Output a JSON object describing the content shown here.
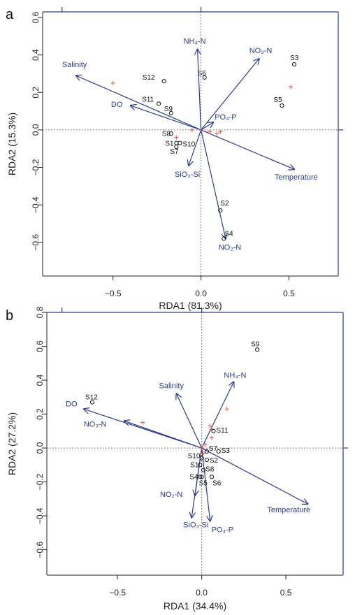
{
  "chart_data": [
    {
      "type": "scatter",
      "panel_label": "a",
      "xlabel": "RDA1 (81.3%)",
      "ylabel": "RDA2 (15.3%)",
      "xlim": [
        -0.9,
        0.78
      ],
      "ylim": [
        -0.78,
        0.63
      ],
      "xticks": [
        -0.5,
        0.0,
        0.5
      ],
      "xtick_labels": [
        "−0.5",
        "0.0",
        "0.5"
      ],
      "yticks": [
        -0.6,
        -0.4,
        -0.2,
        0.0,
        0.2,
        0.4,
        0.6
      ],
      "ytick_labels": [
        "−0.6",
        "−0.4",
        "−0.2",
        "0.0",
        "0.2",
        "0.4",
        "0.6"
      ],
      "top_ticks": [
        -0.79,
        0.0
      ],
      "right_ticks": [
        0.0
      ],
      "grid": false,
      "reference_lines": "dotted at x=0 and y=0",
      "sites": [
        {
          "label": "S3",
          "x": 0.53,
          "y": 0.35
        },
        {
          "label": "S5",
          "x": 0.46,
          "y": 0.13
        },
        {
          "label": "S12",
          "x": -0.21,
          "y": 0.26
        },
        {
          "label": "S6",
          "x": 0.02,
          "y": 0.28
        },
        {
          "label": "S11",
          "x": -0.24,
          "y": 0.14
        },
        {
          "label": "S9",
          "x": -0.17,
          "y": 0.09
        },
        {
          "label": "S8",
          "x": -0.17,
          "y": -0.02
        },
        {
          "label": "S1",
          "x": -0.14,
          "y": -0.07
        },
        {
          "label": "S10",
          "x": -0.12,
          "y": -0.07
        },
        {
          "label": "S7",
          "x": -0.14,
          "y": -0.09
        },
        {
          "label": "S2",
          "x": 0.11,
          "y": -0.43
        },
        {
          "label": "S4",
          "x": 0.13,
          "y": -0.58
        }
      ],
      "crosses": [
        [
          -0.5,
          0.25
        ],
        [
          0.51,
          0.23
        ],
        [
          -0.14,
          -0.04
        ],
        [
          0.05,
          -0.01
        ],
        [
          0.09,
          -0.02
        ],
        [
          0.11,
          -0.01
        ],
        [
          -0.05,
          0.0
        ],
        [
          0.0,
          0.0
        ]
      ],
      "vectors": [
        {
          "label": "NH₄-N",
          "x": -0.02,
          "y": 0.43
        },
        {
          "label": "NO₃-N",
          "x": 0.33,
          "y": 0.38
        },
        {
          "label": "Salinity",
          "x": -0.71,
          "y": 0.29
        },
        {
          "label": "DO",
          "x": -0.4,
          "y": 0.13
        },
        {
          "label": "PO₄-P",
          "x": 0.07,
          "y": 0.04
        },
        {
          "label": "SiO₃-Si",
          "x": -0.07,
          "y": -0.19
        },
        {
          "label": "Temperature",
          "x": 0.53,
          "y": -0.21
        },
        {
          "label": "NO₂-N",
          "x": 0.14,
          "y": -0.58
        }
      ]
    },
    {
      "type": "scatter",
      "panel_label": "b",
      "xlabel": "RDA1 (34.4%)",
      "ylabel": "RDA2 (27.2%)",
      "xlim": [
        -0.92,
        0.84
      ],
      "ylim": [
        -0.75,
        0.8
      ],
      "xticks": [
        -0.5,
        0.0,
        0.5
      ],
      "xtick_labels": [
        "−0.5",
        "0.0",
        "0.5"
      ],
      "yticks": [
        -0.6,
        -0.4,
        -0.2,
        0.0,
        0.2,
        0.4,
        0.6,
        0.8
      ],
      "ytick_labels": [
        "−0.6",
        "−0.4",
        "−0.2",
        "0.0",
        "0.2",
        "0.4",
        "0.6",
        "0.8"
      ],
      "top_ticks": [
        -0.83,
        0.0
      ],
      "right_ticks": [
        0.0
      ],
      "grid": false,
      "reference_lines": "dotted at x=0 and y=0",
      "sites": [
        {
          "label": "S9",
          "x": 0.33,
          "y": 0.58
        },
        {
          "label": "S12",
          "x": -0.65,
          "y": 0.27
        },
        {
          "label": "S11",
          "x": 0.07,
          "y": 0.1
        },
        {
          "label": "S7",
          "x": 0.03,
          "y": -0.02
        },
        {
          "label": "S3",
          "x": 0.1,
          "y": -0.02
        },
        {
          "label": "S10",
          "x": 0.0,
          "y": -0.06
        },
        {
          "label": "S2",
          "x": 0.03,
          "y": -0.07
        },
        {
          "label": "S1",
          "x": -0.01,
          "y": -0.1
        },
        {
          "label": "S8",
          "x": 0.01,
          "y": -0.13
        },
        {
          "label": "S4",
          "x": -0.01,
          "y": -0.17
        },
        {
          "label": "S5",
          "x": 0.0,
          "y": -0.17
        },
        {
          "label": "S6",
          "x": 0.06,
          "y": -0.17
        }
      ],
      "crosses": [
        [
          -0.35,
          0.15
        ],
        [
          0.15,
          0.23
        ],
        [
          0.05,
          0.13
        ],
        [
          0.06,
          0.06
        ],
        [
          0.06,
          0.11
        ],
        [
          0.01,
          -0.03
        ],
        [
          0.02,
          0.02
        ],
        [
          0.0,
          0.0
        ]
      ],
      "vectors": [
        {
          "label": "NH₄-N",
          "x": 0.19,
          "y": 0.39
        },
        {
          "label": "Salinity",
          "x": -0.15,
          "y": 0.32
        },
        {
          "label": "DO",
          "x": -0.7,
          "y": 0.23
        },
        {
          "label": "NO₃-N",
          "x": -0.46,
          "y": 0.16
        },
        {
          "label": "NO₂-N",
          "x": -0.04,
          "y": -0.28
        },
        {
          "label": "SiO₃-Si",
          "x": -0.06,
          "y": -0.41
        },
        {
          "label": "PO₄-P",
          "x": 0.05,
          "y": -0.43
        },
        {
          "label": "Temperature",
          "x": 0.63,
          "y": -0.33
        }
      ]
    }
  ],
  "colors": {
    "axis_frame": "#2b3c8c",
    "vector": "#2b3c8c",
    "vector_label": "#2b3c8c",
    "site_marker": "#111111",
    "cross": "#d9534f",
    "tick_label": "#222222"
  }
}
